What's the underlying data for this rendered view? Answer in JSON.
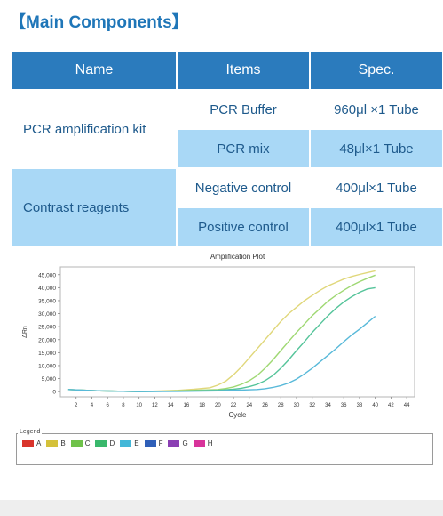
{
  "section_title": "【Main Components】",
  "table": {
    "headers": [
      "Name",
      "Items",
      "Spec."
    ],
    "groups": [
      {
        "name": "PCR amplification kit",
        "rows": [
          {
            "item": "PCR Buffer",
            "spec": "960μl ×1 Tube"
          },
          {
            "item": "PCR mix",
            "spec": "48μl×1 Tube"
          }
        ]
      },
      {
        "name": "Contrast reagents",
        "rows": [
          {
            "item": "Negative control",
            "spec": "400μl×1 Tube"
          },
          {
            "item": "Positive control",
            "spec": "400μl×1 Tube"
          }
        ]
      }
    ]
  },
  "chart_data": {
    "type": "line",
    "title": "Amplification Plot",
    "xlabel": "Cycle",
    "ylabel": "ΔRn",
    "xlim": [
      0,
      45
    ],
    "ylim": [
      -2000,
      48000
    ],
    "x_ticks": [
      "2",
      "4",
      "6",
      "8",
      "10",
      "12",
      "14",
      "16",
      "18",
      "20",
      "22",
      "24",
      "26",
      "28",
      "30",
      "32",
      "34",
      "36",
      "38",
      "40",
      "42",
      "44"
    ],
    "y_ticks": [
      "0",
      "5,000",
      "10,000",
      "15,000",
      "20,000",
      "25,000",
      "30,000",
      "35,000",
      "40,000",
      "45,000"
    ],
    "legend_title": "Legend",
    "legend": [
      {
        "label": "A",
        "color": "#d9342b"
      },
      {
        "label": "B",
        "color": "#d4c13a"
      },
      {
        "label": "C",
        "color": "#6fc24a"
      },
      {
        "label": "D",
        "color": "#39b86c"
      },
      {
        "label": "E",
        "color": "#43b7d8"
      },
      {
        "label": "F",
        "color": "#2f5fb8"
      },
      {
        "label": "G",
        "color": "#8a3fb3"
      },
      {
        "label": "H",
        "color": "#d8339a"
      }
    ],
    "series": [
      {
        "color": "#e0d77a",
        "x": [
          1,
          5,
          10,
          15,
          17,
          19,
          20,
          21,
          22,
          23,
          24,
          25,
          26,
          27,
          28,
          29,
          30,
          31,
          32,
          33,
          34,
          35,
          36,
          37,
          38,
          39,
          40
        ],
        "values": [
          800,
          300,
          0,
          500,
          900,
          1500,
          2500,
          4000,
          6500,
          9500,
          13000,
          16500,
          20000,
          23500,
          27000,
          30000,
          32500,
          35000,
          37000,
          39000,
          40700,
          42000,
          43300,
          44300,
          45100,
          45800,
          46500
        ]
      },
      {
        "color": "#9fd873",
        "x": [
          1,
          5,
          10,
          15,
          20,
          21,
          22,
          23,
          24,
          25,
          26,
          27,
          28,
          29,
          30,
          31,
          32,
          33,
          34,
          35,
          36,
          37,
          38,
          39,
          40
        ],
        "values": [
          800,
          300,
          0,
          300,
          800,
          1200,
          1800,
          2800,
          4200,
          6200,
          9000,
          12200,
          15800,
          19300,
          22800,
          26000,
          29200,
          32000,
          34800,
          37000,
          39000,
          40800,
          42300,
          43600,
          44800
        ]
      },
      {
        "color": "#55c49a",
        "x": [
          1,
          5,
          10,
          15,
          20,
          22,
          23,
          24,
          25,
          26,
          27,
          28,
          29,
          30,
          31,
          32,
          33,
          34,
          35,
          36,
          37,
          38,
          39,
          40
        ],
        "values": [
          800,
          300,
          0,
          200,
          500,
          900,
          1300,
          1900,
          2800,
          4200,
          6200,
          9000,
          12200,
          15800,
          19200,
          22800,
          26000,
          29200,
          32000,
          34500,
          36500,
          38200,
          39500,
          40000
        ]
      },
      {
        "color": "#58b9d9",
        "x": [
          1,
          5,
          10,
          15,
          20,
          25,
          26,
          27,
          28,
          29,
          30,
          31,
          32,
          33,
          34,
          35,
          36,
          37,
          38,
          39,
          40
        ],
        "values": [
          800,
          300,
          0,
          100,
          300,
          800,
          1100,
          1600,
          2300,
          3300,
          4800,
          6800,
          9000,
          11500,
          14000,
          16500,
          19200,
          21800,
          24000,
          26500,
          29000
        ]
      }
    ]
  }
}
